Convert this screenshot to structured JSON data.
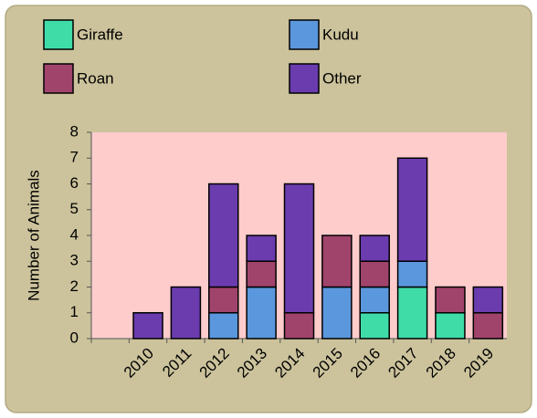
{
  "chart_data": {
    "type": "stacked_bar",
    "y_label": "Number of Animals",
    "categories": [
      null,
      "2010",
      "2011",
      "2012",
      "2013",
      "2014",
      "2015",
      "2016",
      "2017",
      "2018",
      "2019"
    ],
    "series": [
      {
        "name": "Giraffe",
        "color": "#3fdca8",
        "values": [
          0,
          0,
          0,
          0,
          0,
          0,
          0,
          1,
          2,
          1,
          0
        ]
      },
      {
        "name": "Kudu",
        "color": "#5b97dc",
        "values": [
          0,
          0,
          0,
          1,
          2,
          0,
          2,
          1,
          1,
          0,
          0
        ]
      },
      {
        "name": "Roan",
        "color": "#a1446c",
        "values": [
          0,
          0,
          0,
          1,
          1,
          1,
          2,
          1,
          0,
          1,
          1
        ]
      },
      {
        "name": "Other",
        "color": "#6b3cae",
        "values": [
          0,
          1,
          2,
          4,
          1,
          5,
          0,
          1,
          4,
          0,
          1
        ]
      }
    ],
    "ylim": [
      0,
      8
    ],
    "yticks": [
      0,
      1,
      2,
      3,
      4,
      5,
      6,
      7,
      8
    ]
  }
}
